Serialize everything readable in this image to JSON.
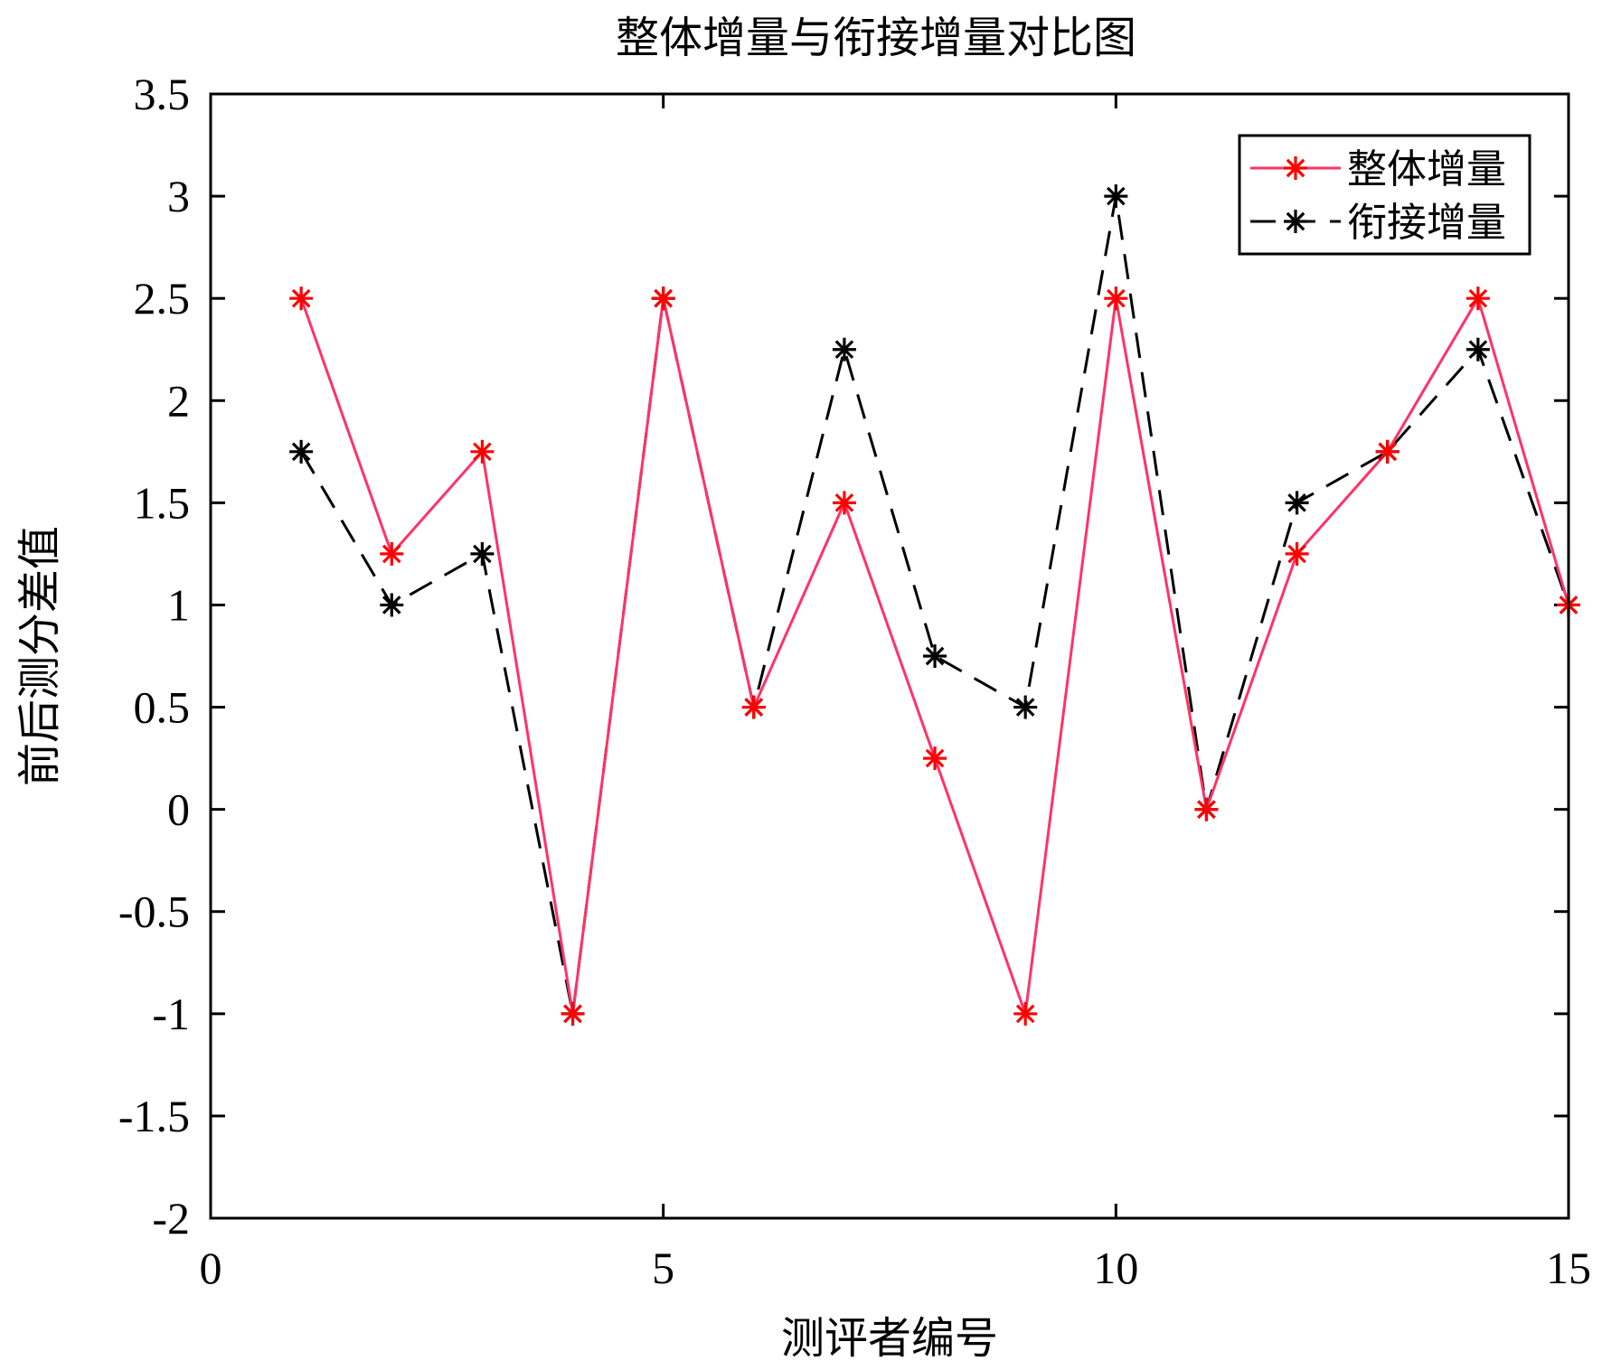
{
  "chart_data": {
    "type": "line",
    "title": "整体增量与衔接增量对比图",
    "xlabel": "测评者编号",
    "ylabel": "前后测分差值",
    "xlim": [
      0,
      15
    ],
    "ylim": [
      -2,
      3.5
    ],
    "xticks": [
      0,
      5,
      10,
      15
    ],
    "yticks": [
      -2,
      -1.5,
      -1,
      -0.5,
      0,
      0.5,
      1,
      1.5,
      2,
      2.5,
      3,
      3.5
    ],
    "grid": false,
    "legend_position": "top-right",
    "x": [
      1,
      2,
      3,
      4,
      5,
      6,
      7,
      8,
      9,
      10,
      11,
      12,
      13,
      14,
      15
    ],
    "series": [
      {
        "name": "整体增量",
        "values": [
          2.5,
          1.25,
          1.75,
          -1,
          2.5,
          0.5,
          1.5,
          0.25,
          -1,
          2.5,
          0,
          1.25,
          1.75,
          2.5,
          1
        ],
        "line_color": "#ff3366",
        "marker_color": "#ff0000",
        "line_style": "solid",
        "marker": "asterisk"
      },
      {
        "name": "衔接增量",
        "values": [
          1.75,
          1,
          1.25,
          -1,
          2.5,
          0.5,
          2.25,
          0.75,
          0.5,
          3,
          0,
          1.5,
          1.75,
          2.25,
          1
        ],
        "line_color": "#000000",
        "marker_color": "#000000",
        "line_style": "dashed",
        "marker": "asterisk"
      }
    ]
  }
}
